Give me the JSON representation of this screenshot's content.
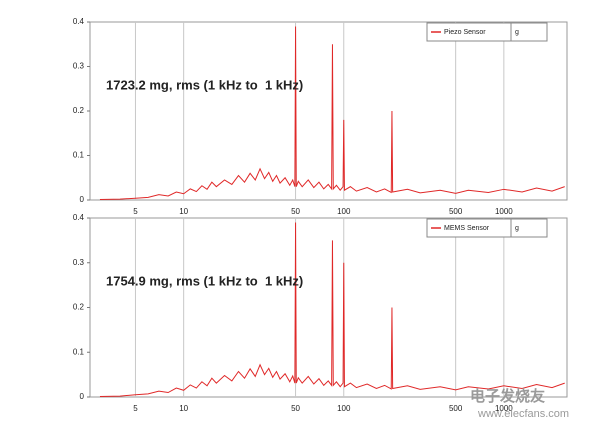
{
  "chart_data": [
    {
      "type": "line",
      "annotation": "1723.2 mg, rms (1 kHz to  1 kHz)",
      "unit_label": "g",
      "log_x": true,
      "grid": true,
      "legend": "top-right",
      "xlim": [
        2.6,
        2480
      ],
      "ylim": [
        0,
        0.4
      ],
      "xticks": [
        5,
        10,
        50,
        100,
        500,
        1000
      ],
      "yticks": [
        0,
        0.1,
        0.2,
        0.3,
        0.4
      ],
      "x": [
        3,
        4,
        5,
        6,
        7,
        8,
        9,
        10,
        11,
        12,
        13,
        14,
        15,
        16,
        18,
        20,
        22,
        24,
        26,
        28,
        30,
        32,
        34,
        36,
        38,
        40,
        43,
        46,
        48,
        49.5,
        50,
        50.5,
        52,
        55,
        60,
        65,
        70,
        75,
        80,
        84,
        85,
        86,
        90,
        95,
        99,
        100,
        101,
        110,
        120,
        140,
        160,
        180,
        198,
        200,
        202,
        250,
        300,
        400,
        500,
        600,
        800,
        1000,
        1300,
        1600,
        2000,
        2400
      ],
      "series": [
        {
          "name": "Piezo Sensor",
          "color": "#e02828",
          "values": [
            0.001,
            0.002,
            0.004,
            0.006,
            0.012,
            0.009,
            0.018,
            0.014,
            0.025,
            0.019,
            0.032,
            0.024,
            0.04,
            0.03,
            0.045,
            0.035,
            0.055,
            0.04,
            0.06,
            0.045,
            0.07,
            0.048,
            0.062,
            0.042,
            0.055,
            0.038,
            0.05,
            0.033,
            0.045,
            0.03,
            0.39,
            0.03,
            0.042,
            0.03,
            0.045,
            0.028,
            0.04,
            0.025,
            0.035,
            0.025,
            0.35,
            0.025,
            0.033,
            0.022,
            0.03,
            0.18,
            0.022,
            0.03,
            0.02,
            0.028,
            0.018,
            0.025,
            0.017,
            0.2,
            0.018,
            0.024,
            0.016,
            0.022,
            0.015,
            0.022,
            0.017,
            0.024,
            0.018,
            0.027,
            0.02,
            0.03
          ]
        }
      ]
    },
    {
      "type": "line",
      "annotation": "1754.9 mg, rms (1 kHz to  1 kHz)",
      "unit_label": "g",
      "log_x": true,
      "grid": true,
      "legend": "top-right",
      "xlim": [
        2.6,
        2480
      ],
      "ylim": [
        0,
        0.4
      ],
      "xticks": [
        5,
        10,
        50,
        100,
        500,
        1000
      ],
      "yticks": [
        0,
        0.1,
        0.2,
        0.3,
        0.4
      ],
      "x": [
        3,
        4,
        5,
        6,
        7,
        8,
        9,
        10,
        11,
        12,
        13,
        14,
        15,
        16,
        18,
        20,
        22,
        24,
        26,
        28,
        30,
        32,
        34,
        36,
        38,
        40,
        43,
        46,
        48,
        49.5,
        50,
        50.5,
        52,
        55,
        60,
        65,
        70,
        75,
        80,
        84,
        85,
        86,
        90,
        95,
        99,
        100,
        101,
        110,
        120,
        140,
        160,
        180,
        198,
        200,
        202,
        250,
        300,
        400,
        500,
        600,
        800,
        1000,
        1300,
        1600,
        2000,
        2400
      ],
      "series": [
        {
          "name": "MEMS Sensor",
          "color": "#e02828",
          "values": [
            0.001,
            0.002,
            0.005,
            0.007,
            0.013,
            0.01,
            0.02,
            0.015,
            0.027,
            0.02,
            0.034,
            0.025,
            0.042,
            0.031,
            0.048,
            0.036,
            0.057,
            0.042,
            0.063,
            0.046,
            0.072,
            0.05,
            0.064,
            0.044,
            0.057,
            0.04,
            0.052,
            0.034,
            0.047,
            0.031,
            0.39,
            0.031,
            0.043,
            0.031,
            0.046,
            0.029,
            0.041,
            0.026,
            0.036,
            0.026,
            0.35,
            0.026,
            0.034,
            0.023,
            0.031,
            0.3,
            0.023,
            0.031,
            0.021,
            0.029,
            0.019,
            0.026,
            0.018,
            0.2,
            0.019,
            0.025,
            0.017,
            0.023,
            0.016,
            0.023,
            0.018,
            0.025,
            0.019,
            0.028,
            0.021,
            0.031
          ]
        }
      ]
    }
  ],
  "watermark": {
    "logo": "电子发烧友",
    "url": "www.elecfans.com"
  }
}
